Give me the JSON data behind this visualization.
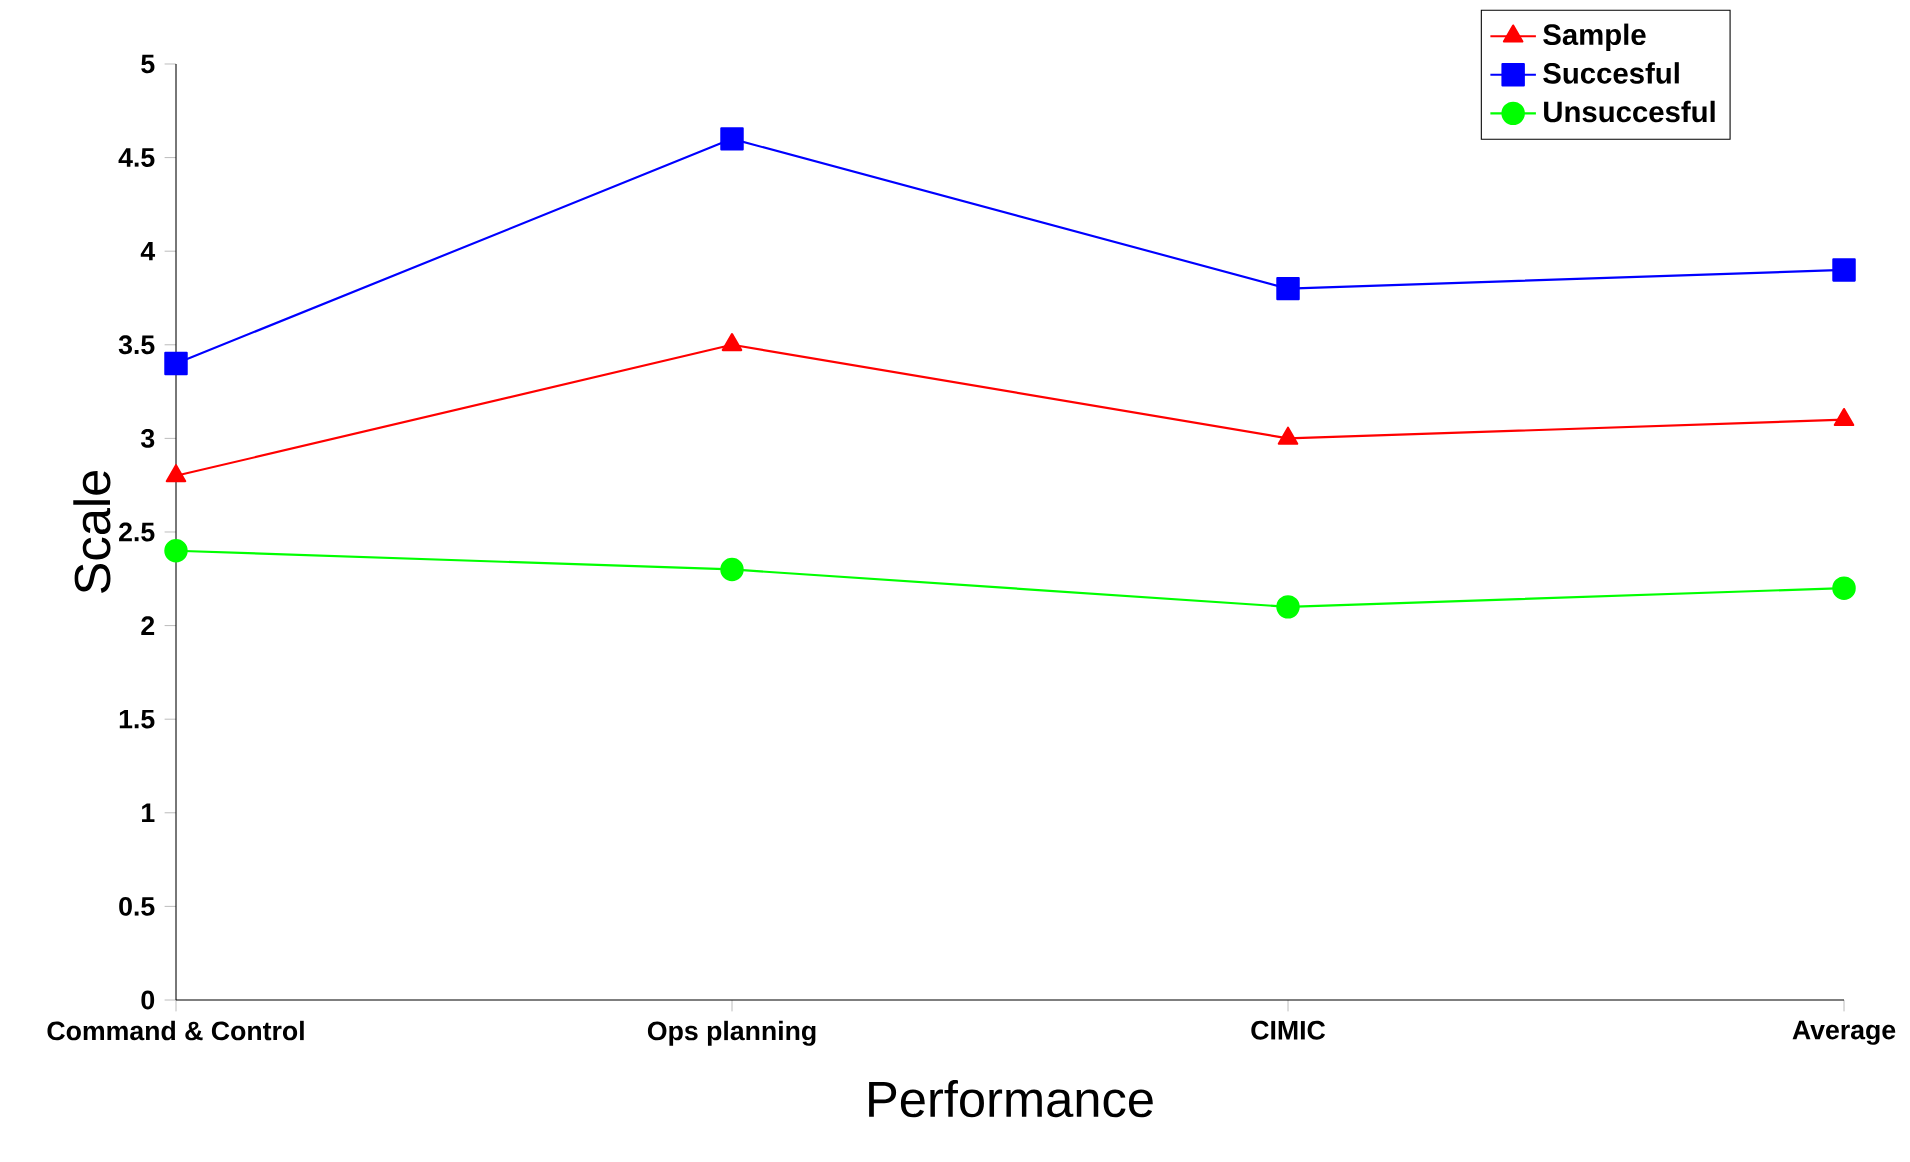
{
  "chart_data": {
    "type": "line",
    "xlabel": "Performance",
    "ylabel": "Scale",
    "categories": [
      "Command & Control",
      "Ops planning",
      "CIMIC",
      "Average"
    ],
    "ylim": [
      0,
      5
    ],
    "yticks": [
      0,
      0.5,
      1,
      1.5,
      2,
      2.5,
      3,
      3.5,
      4,
      4.5,
      5
    ],
    "grid": false,
    "legend": "top right",
    "line_style": "solid",
    "series": [
      {
        "name": "Sample",
        "color": "#ff0000",
        "marker": "triangle",
        "values": [
          2.8,
          3.5,
          3.0,
          3.1
        ]
      },
      {
        "name": "Succesful",
        "color": "#0000ff",
        "marker": "square",
        "values": [
          3.4,
          4.6,
          3.8,
          3.9
        ]
      },
      {
        "name": "Unsuccesful",
        "color": "#00ff00",
        "marker": "circle",
        "values": [
          2.4,
          2.3,
          2.1,
          2.2
        ]
      }
    ]
  }
}
